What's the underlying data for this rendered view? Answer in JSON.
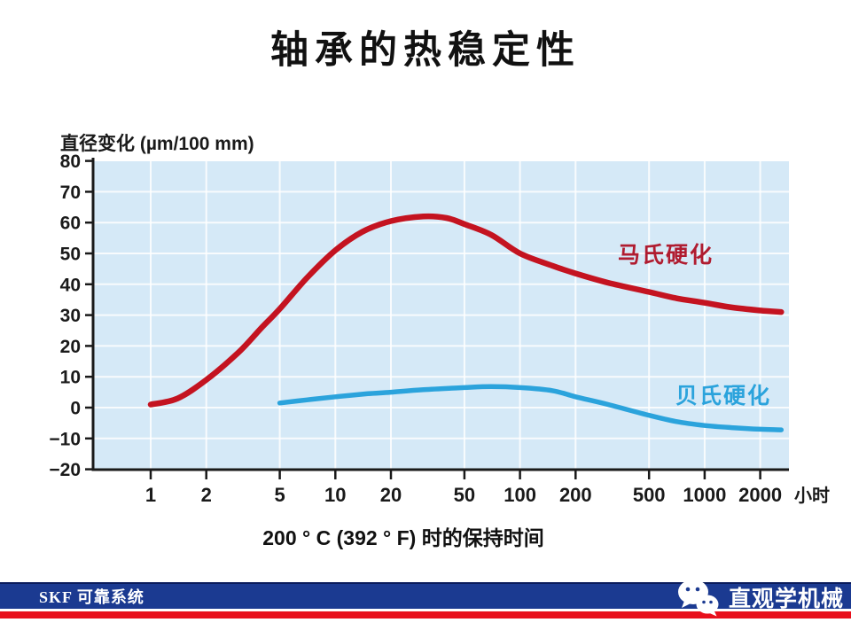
{
  "title": "轴承的热稳定性",
  "chart_data": {
    "type": "line",
    "x_scale": "log",
    "x_ticks": [
      1,
      2,
      5,
      10,
      20,
      50,
      100,
      200,
      500,
      1000,
      2000
    ],
    "x_unit": "小时",
    "y_label": "直径变化 (µm/100 mm)",
    "y_ticks": [
      80,
      70,
      60,
      50,
      40,
      30,
      20,
      10,
      0,
      -10,
      -20
    ],
    "ylim": [
      -20,
      80
    ],
    "xlim": [
      0.5,
      2800
    ],
    "grid": true,
    "plot_bg": "#d5e9f7",
    "grid_color": "#ffffff",
    "axis_color": "#1a1a1a",
    "series": [
      {
        "name": "马氏硬化",
        "color": "#c41320",
        "label_color": "#b01c30",
        "points": [
          [
            1,
            1
          ],
          [
            1.4,
            3
          ],
          [
            2,
            9
          ],
          [
            3,
            18
          ],
          [
            4,
            26
          ],
          [
            5,
            32
          ],
          [
            7,
            42
          ],
          [
            10,
            51
          ],
          [
            14,
            57
          ],
          [
            20,
            60.5
          ],
          [
            30,
            62
          ],
          [
            40,
            61.5
          ],
          [
            50,
            59.5
          ],
          [
            70,
            56
          ],
          [
            100,
            50
          ],
          [
            150,
            46
          ],
          [
            200,
            43.5
          ],
          [
            300,
            40.5
          ],
          [
            500,
            37.5
          ],
          [
            700,
            35.5
          ],
          [
            1000,
            34
          ],
          [
            1400,
            32.5
          ],
          [
            2000,
            31.5
          ],
          [
            2600,
            31
          ]
        ]
      },
      {
        "name": "贝氏硬化",
        "color": "#2ba3dc",
        "label_color": "#2ba3dc",
        "points": [
          [
            5,
            1.5
          ],
          [
            7,
            2.5
          ],
          [
            10,
            3.5
          ],
          [
            15,
            4.5
          ],
          [
            20,
            5
          ],
          [
            30,
            5.8
          ],
          [
            50,
            6.5
          ],
          [
            70,
            6.8
          ],
          [
            100,
            6.5
          ],
          [
            150,
            5.5
          ],
          [
            200,
            3.5
          ],
          [
            300,
            1
          ],
          [
            500,
            -2.5
          ],
          [
            700,
            -4.5
          ],
          [
            1000,
            -5.8
          ],
          [
            1400,
            -6.5
          ],
          [
            2000,
            -7
          ],
          [
            2600,
            -7.2
          ]
        ]
      }
    ],
    "caption": "200 ° C (392 ° F) 时的保持时间"
  },
  "footer": {
    "brand": "SKF 可靠系统",
    "wechat_label": "直观学机械",
    "bar_color": "#1b3a91",
    "stripe_color": "#e8101c"
  }
}
